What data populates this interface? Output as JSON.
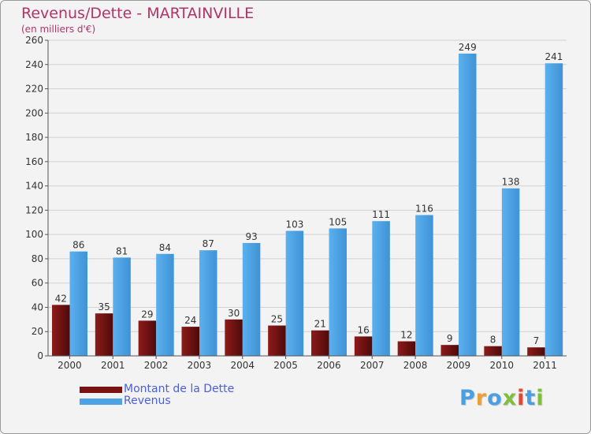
{
  "header": {
    "title": "Revenus/Dette - MARTAINVILLE",
    "subtitle": "(en milliers d'€)"
  },
  "colors": {
    "title": "#b0336a",
    "debt": "#7a1212",
    "revenue": "#4da3e6",
    "legend_text": "#4a5fd8"
  },
  "chart_data": {
    "type": "bar",
    "title": "Revenus/Dette - MARTAINVILLE",
    "subtitle": "(en milliers d'€)",
    "categories": [
      "2000",
      "2001",
      "2002",
      "2003",
      "2004",
      "2005",
      "2006",
      "2007",
      "2008",
      "2009",
      "2010",
      "2011"
    ],
    "series": [
      {
        "name": "Montant de la Dette",
        "values": [
          42,
          35,
          29,
          24,
          30,
          25,
          21,
          16,
          12,
          9,
          8,
          7
        ]
      },
      {
        "name": "Revenus",
        "values": [
          86,
          81,
          84,
          87,
          93,
          103,
          105,
          111,
          116,
          249,
          138,
          241
        ]
      }
    ],
    "ylim": [
      0,
      260
    ],
    "yticks": [
      0,
      20,
      40,
      60,
      80,
      100,
      120,
      140,
      160,
      180,
      200,
      220,
      240,
      260
    ],
    "grid": true,
    "legend_position": "bottom-left"
  },
  "legend": {
    "items": [
      {
        "label": "Montant de la Dette",
        "color": "#7a1212"
      },
      {
        "label": "Revenus",
        "color": "#4da3e6"
      }
    ]
  },
  "logo": {
    "letters": [
      "P",
      "r",
      "o",
      "x",
      "i",
      "t",
      "i"
    ],
    "colors": [
      "#4a9fe0",
      "#e8a13a",
      "#4a9fe0",
      "#7fbf3a",
      "#e0493a",
      "#4a9fe0",
      "#7fbf3a"
    ]
  }
}
